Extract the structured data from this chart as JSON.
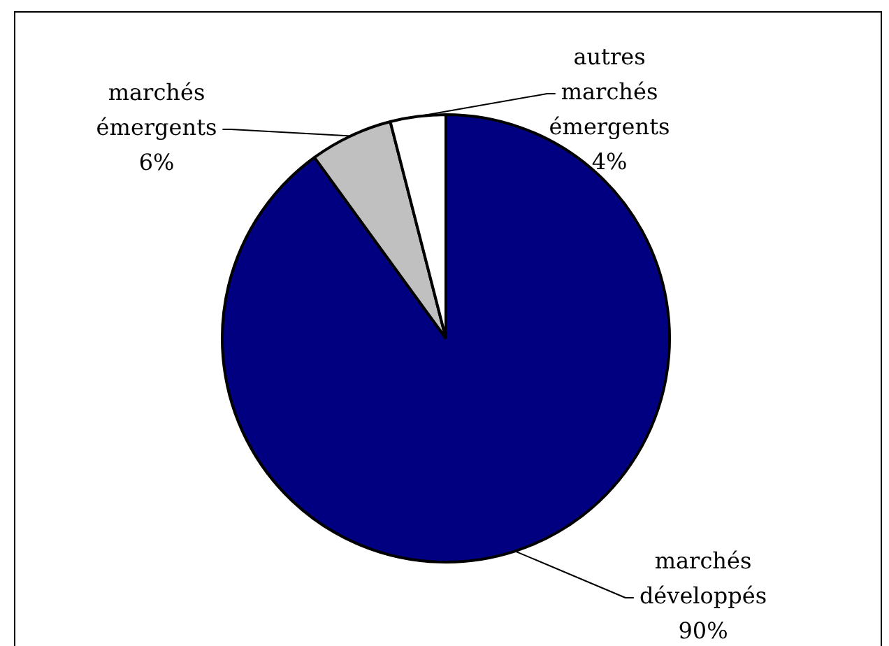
{
  "chart_data": {
    "type": "pie",
    "categories": [
      "marchés développés",
      "marchés émergents",
      "autres marchés émergents"
    ],
    "values": [
      90,
      6,
      4
    ],
    "colors": [
      "#000080",
      "#c0c0c0",
      "#ffffff"
    ],
    "value_labels": [
      "90%",
      "6%",
      "4%"
    ]
  }
}
